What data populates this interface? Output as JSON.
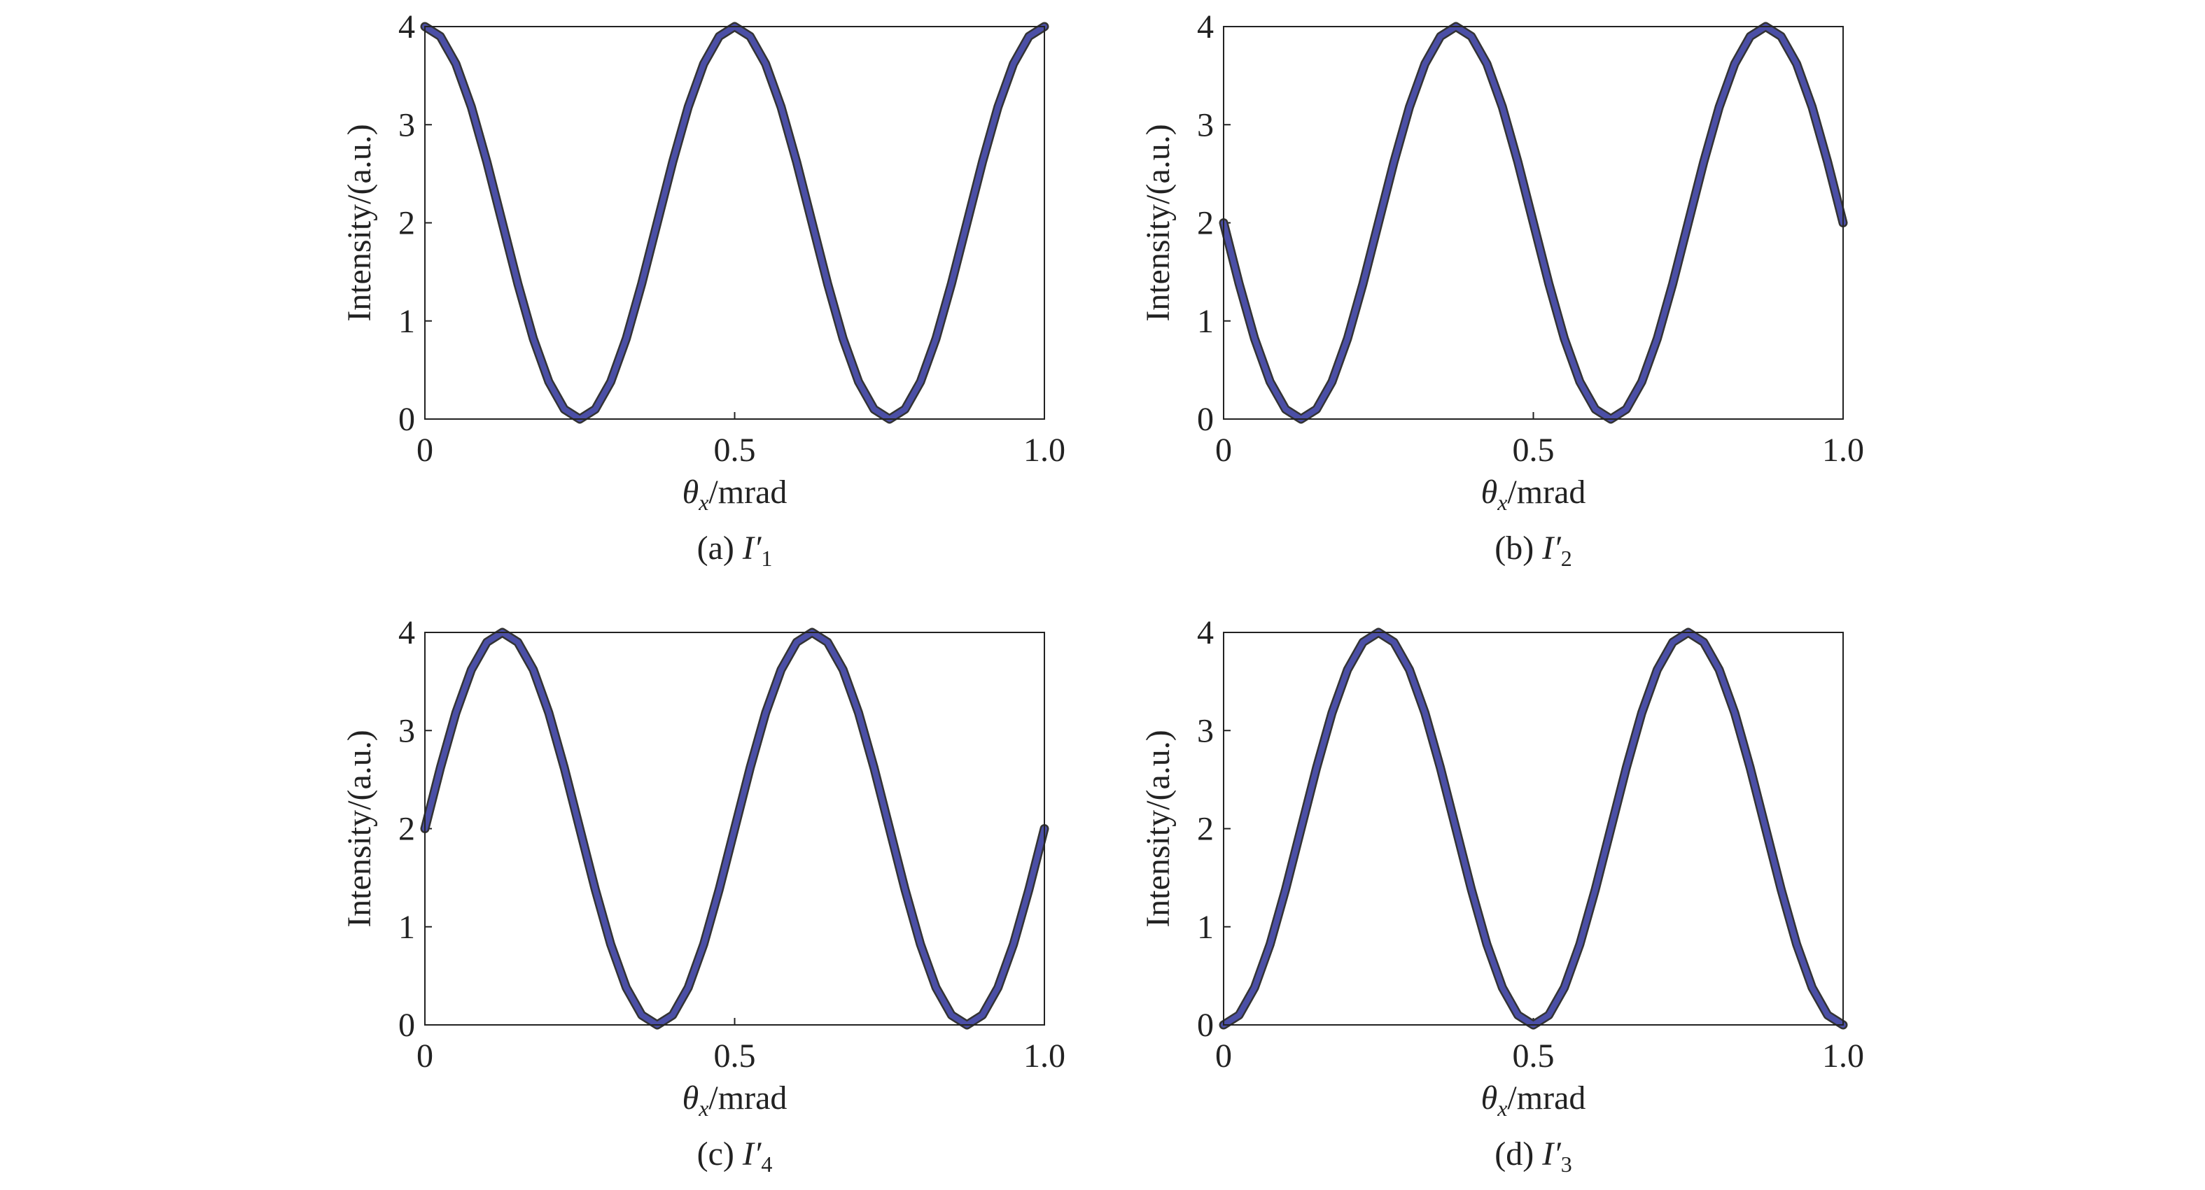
{
  "chart_data": [
    {
      "type": "line",
      "caption_label": "(a)",
      "caption_symbol": "I′",
      "caption_subscript": "1",
      "x_label": {
        "symbol": "θ",
        "subscript": "x",
        "unit": "/mrad"
      },
      "y_label": "Intensity/(a.u.)",
      "xlim": [
        0,
        1
      ],
      "ylim": [
        0,
        4
      ],
      "xticks": [
        0,
        0.5,
        {
          "value": 1,
          "label": "1.0"
        }
      ],
      "yticks": [
        0,
        1,
        2,
        3,
        4
      ],
      "x": [
        0,
        0.025,
        0.05,
        0.075,
        0.1,
        0.125,
        0.15,
        0.175,
        0.2,
        0.225,
        0.25,
        0.275,
        0.3,
        0.325,
        0.35,
        0.375,
        0.4,
        0.425,
        0.45,
        0.475,
        0.5,
        0.525,
        0.55,
        0.575,
        0.6,
        0.625,
        0.65,
        0.675,
        0.7,
        0.725,
        0.75,
        0.775,
        0.8,
        0.825,
        0.85,
        0.875,
        0.9,
        0.925,
        0.95,
        0.975,
        1
      ],
      "series": [
        {
          "color": "#4b4fa6",
          "values": [
            4,
            3.9,
            3.62,
            3.18,
            2.62,
            2,
            1.38,
            0.82,
            0.38,
            0.1,
            0,
            0.1,
            0.38,
            0.82,
            1.38,
            2,
            2.62,
            3.18,
            3.62,
            3.9,
            4,
            3.9,
            3.62,
            3.18,
            2.62,
            2,
            1.38,
            0.82,
            0.38,
            0.1,
            0,
            0.1,
            0.38,
            0.82,
            1.38,
            2,
            2.62,
            3.18,
            3.62,
            3.9,
            4
          ]
        }
      ]
    },
    {
      "type": "line",
      "caption_label": "(b)",
      "caption_symbol": "I′",
      "caption_subscript": "2",
      "x_label": {
        "symbol": "θ",
        "subscript": "x",
        "unit": "/mrad"
      },
      "y_label": "Intensity/(a.u.)",
      "xlim": [
        0,
        1
      ],
      "ylim": [
        0,
        4
      ],
      "xticks": [
        0,
        0.5,
        {
          "value": 1,
          "label": "1.0"
        }
      ],
      "yticks": [
        0,
        1,
        2,
        3,
        4
      ],
      "x": [
        0,
        0.025,
        0.05,
        0.075,
        0.1,
        0.125,
        0.15,
        0.175,
        0.2,
        0.225,
        0.25,
        0.275,
        0.3,
        0.325,
        0.35,
        0.375,
        0.4,
        0.425,
        0.45,
        0.475,
        0.5,
        0.525,
        0.55,
        0.575,
        0.6,
        0.625,
        0.65,
        0.675,
        0.7,
        0.725,
        0.75,
        0.775,
        0.8,
        0.825,
        0.85,
        0.875,
        0.9,
        0.925,
        0.95,
        0.975,
        1
      ],
      "series": [
        {
          "color": "#4b4fa6",
          "values": [
            2,
            1.38,
            0.82,
            0.38,
            0.1,
            0,
            0.1,
            0.38,
            0.82,
            1.38,
            2,
            2.62,
            3.18,
            3.62,
            3.9,
            4,
            3.9,
            3.62,
            3.18,
            2.62,
            2,
            1.38,
            0.82,
            0.38,
            0.1,
            0,
            0.1,
            0.38,
            0.82,
            1.38,
            2,
            2.62,
            3.18,
            3.62,
            3.9,
            4,
            3.9,
            3.62,
            3.18,
            2.62,
            2
          ]
        }
      ]
    },
    {
      "type": "line",
      "caption_label": "(c)",
      "caption_symbol": "I′",
      "caption_subscript": "4",
      "x_label": {
        "symbol": "θ",
        "subscript": "x",
        "unit": "/mrad"
      },
      "y_label": "Intensity/(a.u.)",
      "xlim": [
        0,
        1
      ],
      "ylim": [
        0,
        4
      ],
      "xticks": [
        0,
        0.5,
        {
          "value": 1,
          "label": "1.0"
        }
      ],
      "yticks": [
        0,
        1,
        2,
        3,
        4
      ],
      "x": [
        0,
        0.025,
        0.05,
        0.075,
        0.1,
        0.125,
        0.15,
        0.175,
        0.2,
        0.225,
        0.25,
        0.275,
        0.3,
        0.325,
        0.35,
        0.375,
        0.4,
        0.425,
        0.45,
        0.475,
        0.5,
        0.525,
        0.55,
        0.575,
        0.6,
        0.625,
        0.65,
        0.675,
        0.7,
        0.725,
        0.75,
        0.775,
        0.8,
        0.825,
        0.85,
        0.875,
        0.9,
        0.925,
        0.95,
        0.975,
        1
      ],
      "series": [
        {
          "color": "#4b4fa6",
          "values": [
            2,
            2.62,
            3.18,
            3.62,
            3.9,
            4,
            3.9,
            3.62,
            3.18,
            2.62,
            2,
            1.38,
            0.82,
            0.38,
            0.1,
            0,
            0.1,
            0.38,
            0.82,
            1.38,
            2,
            2.62,
            3.18,
            3.62,
            3.9,
            4,
            3.9,
            3.62,
            3.18,
            2.62,
            2,
            1.38,
            0.82,
            0.38,
            0.1,
            0,
            0.1,
            0.38,
            0.82,
            1.38,
            2
          ]
        }
      ]
    },
    {
      "type": "line",
      "caption_label": "(d)",
      "caption_symbol": "I′",
      "caption_subscript": "3",
      "x_label": {
        "symbol": "θ",
        "subscript": "x",
        "unit": "/mrad"
      },
      "y_label": "Intensity/(a.u.)",
      "xlim": [
        0,
        1
      ],
      "ylim": [
        0,
        4
      ],
      "xticks": [
        0,
        0.5,
        {
          "value": 1,
          "label": "1.0"
        }
      ],
      "yticks": [
        0,
        1,
        2,
        3,
        4
      ],
      "x": [
        0,
        0.025,
        0.05,
        0.075,
        0.1,
        0.125,
        0.15,
        0.175,
        0.2,
        0.225,
        0.25,
        0.275,
        0.3,
        0.325,
        0.35,
        0.375,
        0.4,
        0.425,
        0.45,
        0.475,
        0.5,
        0.525,
        0.55,
        0.575,
        0.6,
        0.625,
        0.65,
        0.675,
        0.7,
        0.725,
        0.75,
        0.775,
        0.8,
        0.825,
        0.85,
        0.875,
        0.9,
        0.925,
        0.95,
        0.975,
        1
      ],
      "series": [
        {
          "color": "#4b4fa6",
          "values": [
            0,
            0.1,
            0.38,
            0.82,
            1.38,
            2,
            2.62,
            3.18,
            3.62,
            3.9,
            4,
            3.9,
            3.62,
            3.18,
            2.62,
            2,
            1.38,
            0.82,
            0.38,
            0.1,
            0,
            0.1,
            0.38,
            0.82,
            1.38,
            2,
            2.62,
            3.18,
            3.62,
            3.9,
            4,
            3.9,
            3.62,
            3.18,
            2.62,
            2,
            1.38,
            0.82,
            0.38,
            0.1,
            0
          ]
        }
      ]
    }
  ]
}
